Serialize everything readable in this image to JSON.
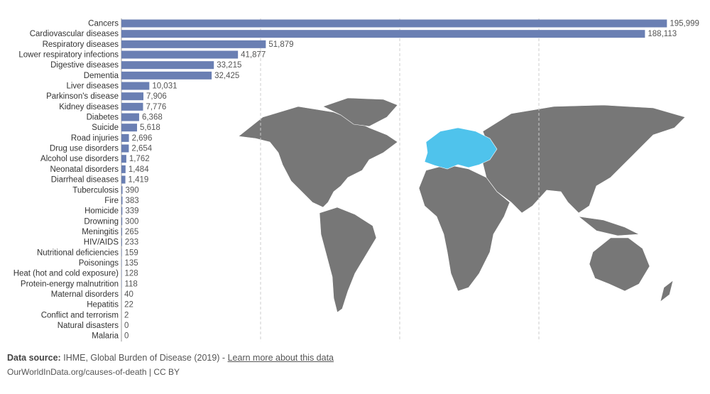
{
  "chart_data": {
    "type": "bar",
    "orientation": "horizontal",
    "color": "#6a7fb3",
    "highlight_color": "#4fc3ec",
    "categories": [
      "Cancers",
      "Cardiovascular diseases",
      "Respiratory diseases",
      "Lower respiratory infections",
      "Digestive diseases",
      "Dementia",
      "Liver diseases",
      "Parkinson's disease",
      "Kidney diseases",
      "Diabetes",
      "Suicide",
      "Road injuries",
      "Drug use disorders",
      "Alcohol use disorders",
      "Neonatal disorders",
      "Diarrheal diseases",
      "Tuberculosis",
      "Fire",
      "Homicide",
      "Drowning",
      "Meningitis",
      "HIV/AIDS",
      "Nutritional deficiencies",
      "Poisonings",
      "Heat (hot and cold exposure)",
      "Protein-energy malnutrition",
      "Maternal disorders",
      "Hepatitis",
      "Conflict and terrorism",
      "Natural disasters",
      "Malaria"
    ],
    "values": [
      195999,
      188113,
      51879,
      41877,
      33215,
      32425,
      10031,
      7906,
      7776,
      6368,
      5618,
      2696,
      2654,
      1762,
      1484,
      1419,
      390,
      383,
      339,
      300,
      265,
      233,
      159,
      135,
      128,
      118,
      40,
      22,
      2,
      0,
      0
    ],
    "value_labels": [
      "195,999",
      "188,113",
      "51,879",
      "41,877",
      "33,215",
      "32,425",
      "10,031",
      "7,906",
      "7,776",
      "6,368",
      "5,618",
      "2,696",
      "2,654",
      "1,762",
      "1,484",
      "1,419",
      "390",
      "383",
      "339",
      "300",
      "265",
      "233",
      "159",
      "135",
      "128",
      "118",
      "40",
      "22",
      "2",
      "0",
      "0"
    ],
    "xlim": [
      0,
      200000
    ],
    "xticks": [
      50000,
      100000,
      150000
    ],
    "grid": true,
    "source_label": "Data source:",
    "source": "IHME, Global Burden of Disease (2019) -",
    "source_link": "Learn more about this data",
    "credit": "OurWorldInData.org/causes-of-death | CC BY"
  }
}
